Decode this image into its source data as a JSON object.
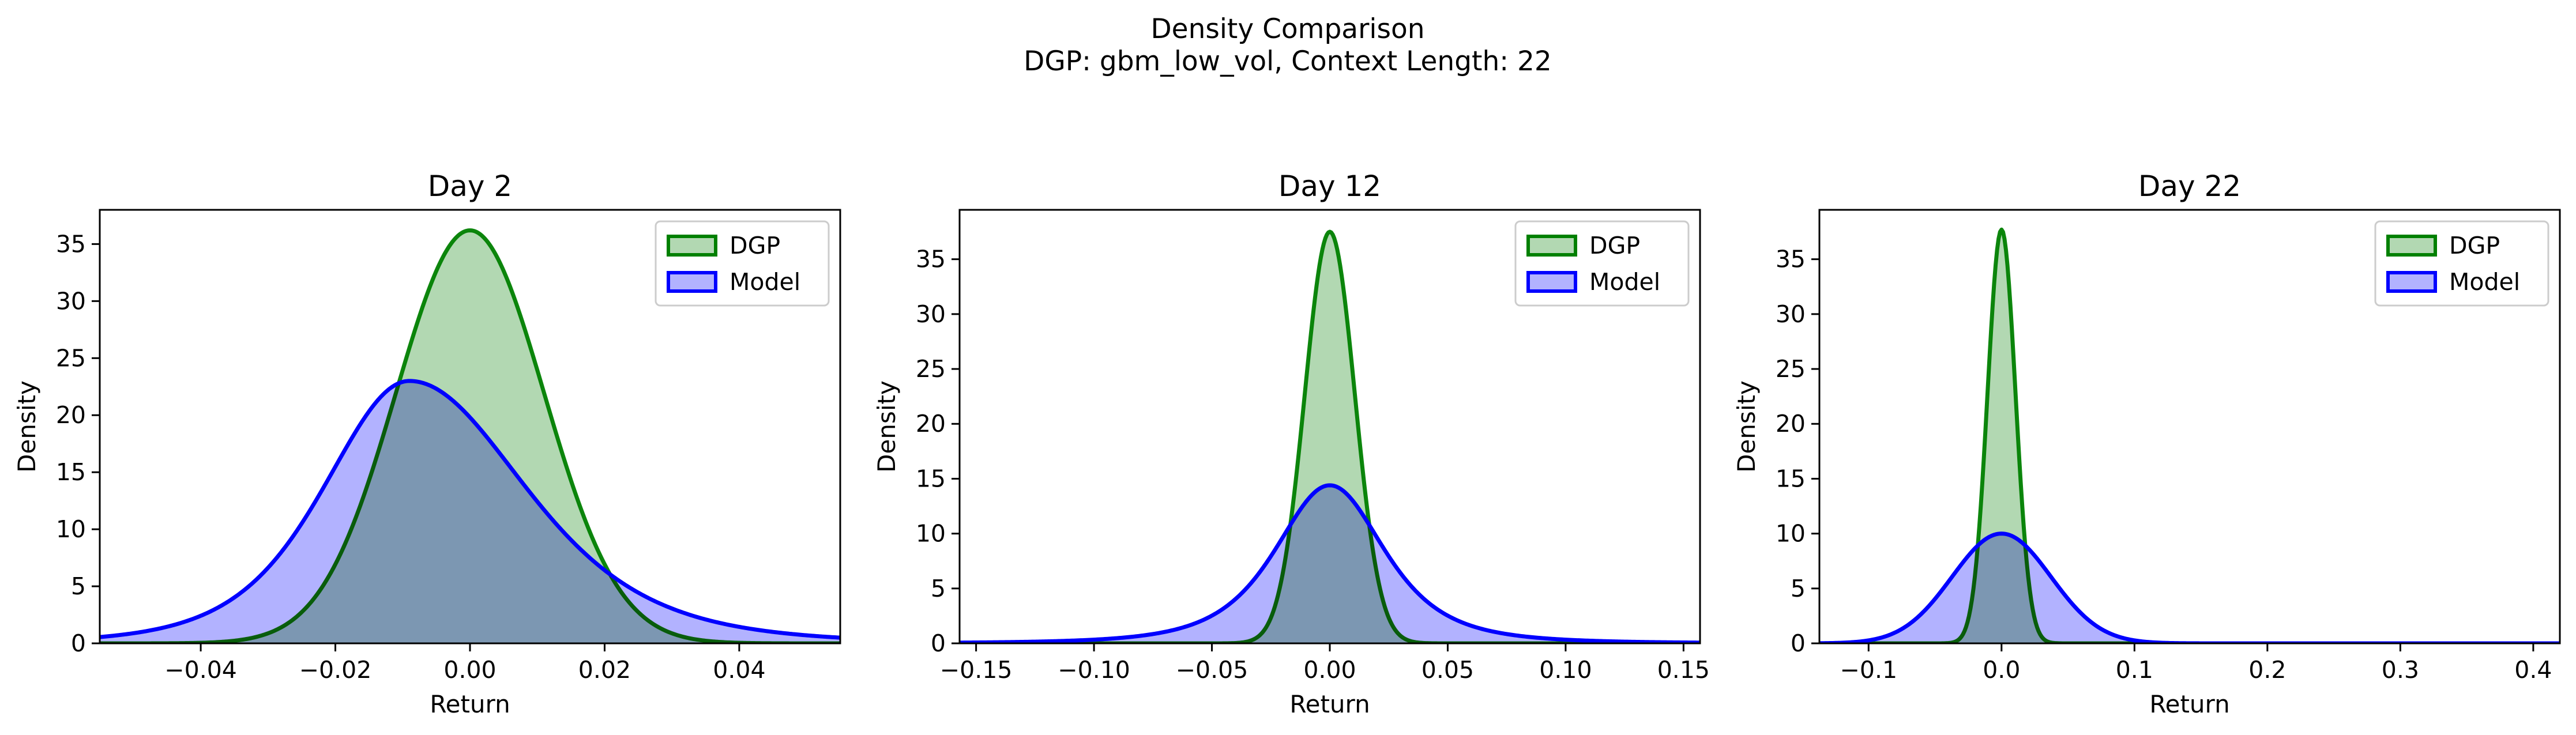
{
  "figure": {
    "title_line1": "Density Comparison",
    "title_line2": "DGP: gbm_low_vol, Context Length: 22"
  },
  "colors": {
    "dgp_line": "#008000",
    "dgp_fill": "#b2d8b2",
    "model_line": "#0000ff",
    "model_fill": "#b2b2ff",
    "overlap_fill": "#7f9acb"
  },
  "chart_data": [
    {
      "type": "area",
      "title": "Day 2",
      "xlabel": "Return",
      "ylabel": "Density",
      "xlim": [
        -0.055,
        0.055
      ],
      "ylim": [
        0,
        38
      ],
      "xticks": [
        -0.04,
        -0.02,
        0.0,
        0.02,
        0.04
      ],
      "xtick_labels": [
        "−0.04",
        "−0.02",
        "0.00",
        "0.02",
        "0.04"
      ],
      "yticks": [
        0,
        5,
        10,
        15,
        20,
        25,
        30,
        35
      ],
      "ytick_labels": [
        "0",
        "5",
        "10",
        "15",
        "20",
        "25",
        "30",
        "35"
      ],
      "legend_position": "top-right",
      "series": [
        {
          "name": "DGP",
          "distribution": "normal",
          "mean": 0.0,
          "peak": 36.2
        },
        {
          "name": "Model",
          "distribution": "skewed",
          "mode": -0.009,
          "peak": 23.0,
          "sigma_left": 0.0131,
          "sigma_right": 0.0178
        }
      ]
    },
    {
      "type": "area",
      "title": "Day 12",
      "xlabel": "Return",
      "ylabel": "Density",
      "xlim": [
        -0.157,
        0.157
      ],
      "ylim": [
        0,
        39.5
      ],
      "xticks": [
        -0.15,
        -0.1,
        -0.05,
        0.0,
        0.05,
        0.1,
        0.15
      ],
      "xtick_labels": [
        "−0.15",
        "−0.10",
        "−0.05",
        "0.00",
        "0.05",
        "0.10",
        "0.15"
      ],
      "yticks": [
        0,
        5,
        10,
        15,
        20,
        25,
        30,
        35
      ],
      "ytick_labels": [
        "0",
        "5",
        "10",
        "15",
        "20",
        "25",
        "30",
        "35"
      ],
      "legend_position": "top-right",
      "series": [
        {
          "name": "DGP",
          "distribution": "normal",
          "mean": 0.0,
          "peak": 37.5
        },
        {
          "name": "Model",
          "distribution": "heavy-tailed",
          "mode": 0.0,
          "peak": 14.4
        }
      ]
    },
    {
      "type": "area",
      "title": "Day 22",
      "xlabel": "Return",
      "ylabel": "Density",
      "xlim": [
        -0.137,
        0.42
      ],
      "ylim": [
        0,
        39.5
      ],
      "xticks": [
        -0.1,
        0.0,
        0.1,
        0.2,
        0.3,
        0.4
      ],
      "xtick_labels": [
        "−0.1",
        "0.0",
        "0.1",
        "0.2",
        "0.3",
        "0.4"
      ],
      "yticks": [
        0,
        5,
        10,
        15,
        20,
        25,
        30,
        35
      ],
      "ytick_labels": [
        "0",
        "5",
        "10",
        "15",
        "20",
        "25",
        "30",
        "35"
      ],
      "legend_position": "top-right",
      "series": [
        {
          "name": "DGP",
          "distribution": "normal",
          "mean": 0.0,
          "peak": 37.7
        },
        {
          "name": "Model",
          "distribution": "normal",
          "mean": 0.0,
          "peak": 10.0
        }
      ]
    }
  ]
}
